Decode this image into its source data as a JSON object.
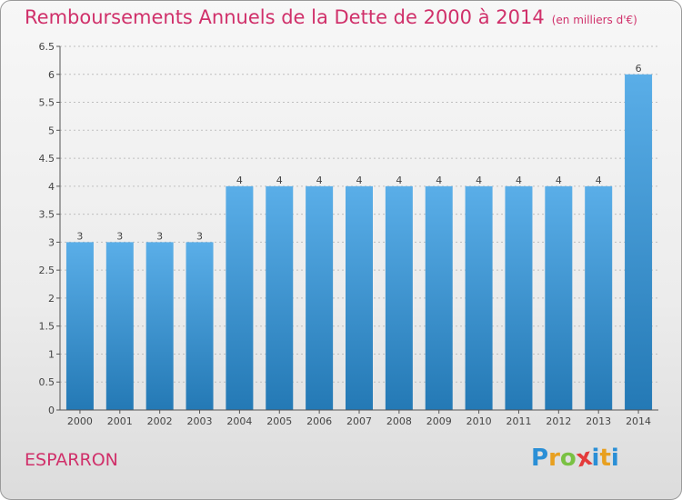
{
  "header": {
    "title": "Remboursements Annuels de la Dette de 2000 à 2014",
    "unit": "(en milliers d'€)"
  },
  "footer": {
    "commune": "ESPARRON",
    "logo": {
      "letters": [
        "P",
        "r",
        "o",
        "x",
        "i",
        "t",
        "i"
      ],
      "colors": [
        "#2a8fd6",
        "#e8a020",
        "#7ac143",
        "#e43a3a",
        "#2a8fd6",
        "#e8a020",
        "#2a8fd6"
      ]
    }
  },
  "colors": {
    "bar_light": "#5aaee8",
    "bar_dark": "#2479b5",
    "title": "#d0306a",
    "axis": "#555555",
    "grid": "#bfbfbf"
  },
  "chart_data": {
    "type": "bar",
    "title": "Remboursements Annuels de la Dette de 2000 à 2014",
    "subtitle": "(en milliers d'€)",
    "xlabel": "",
    "ylabel": "",
    "categories": [
      "2000",
      "2001",
      "2002",
      "2003",
      "2004",
      "2005",
      "2006",
      "2007",
      "2008",
      "2009",
      "2010",
      "2011",
      "2012",
      "2013",
      "2014"
    ],
    "values": [
      3,
      3,
      3,
      3,
      4,
      4,
      4,
      4,
      4,
      4,
      4,
      4,
      4,
      4,
      6
    ],
    "data_labels": [
      "3",
      "3",
      "3",
      "3",
      "4",
      "4",
      "4",
      "4",
      "4",
      "4",
      "4",
      "4",
      "4",
      "4",
      "6"
    ],
    "ylim": [
      0,
      6.5
    ],
    "yticks": [
      0,
      0.5,
      1,
      1.5,
      2,
      2.5,
      3,
      3.5,
      4,
      4.5,
      5,
      5.5,
      6,
      6.5
    ],
    "ytick_labels": [
      "0",
      "0.5",
      "1",
      "1.5",
      "2",
      "2.5",
      "3",
      "3.5",
      "4",
      "4.5",
      "5",
      "5.5",
      "6",
      "6.5"
    ],
    "grid": true
  }
}
